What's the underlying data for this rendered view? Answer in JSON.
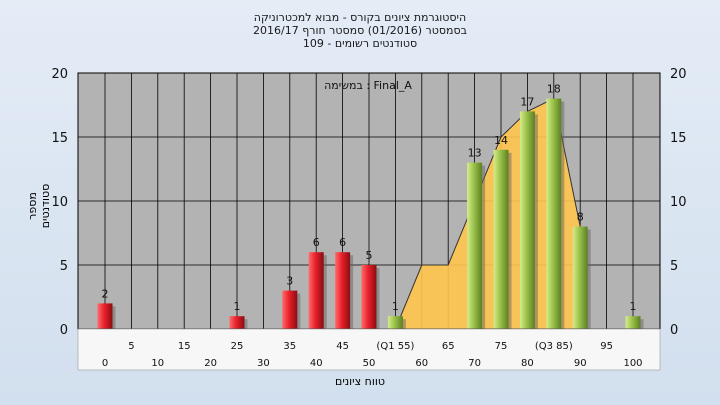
{
  "header": {
    "line1": "היסטוגרמת ציונים בקורס - מבוא למכטרוניקה",
    "line2": "בסמסטר  (01/2016)  סמסטר חורף  2016/17",
    "line3": "סטודנטים רשומים - 109"
  },
  "chart_data": {
    "type": "bar",
    "annotation": "במשימה : Final_A",
    "xlabel": "טווח ציונים",
    "ylabel": "מספר סטודנטים",
    "ylim": [
      0,
      20
    ],
    "y_ticks": [
      0,
      5,
      10,
      15,
      20
    ],
    "grid": true,
    "x_tick_labels": [
      {
        "pos": 0,
        "label": "0"
      },
      {
        "pos": 5,
        "label": "5"
      },
      {
        "pos": 10,
        "label": "10"
      },
      {
        "pos": 15,
        "label": "15"
      },
      {
        "pos": 20,
        "label": "20"
      },
      {
        "pos": 25,
        "label": "25"
      },
      {
        "pos": 30,
        "label": "30"
      },
      {
        "pos": 35,
        "label": "35"
      },
      {
        "pos": 40,
        "label": "40"
      },
      {
        "pos": 45,
        "label": "45"
      },
      {
        "pos": 50,
        "label": "50"
      },
      {
        "pos": 55,
        "label": "(Q1 55)"
      },
      {
        "pos": 60,
        "label": "60"
      },
      {
        "pos": 65,
        "label": "65"
      },
      {
        "pos": 70,
        "label": "70"
      },
      {
        "pos": 75,
        "label": "75"
      },
      {
        "pos": 80,
        "label": "80"
      },
      {
        "pos": 85,
        "label": "(Q3 85)"
      },
      {
        "pos": 90,
        "label": "90"
      },
      {
        "pos": 95,
        "label": "95"
      },
      {
        "pos": 100,
        "label": "100"
      }
    ],
    "bars": [
      {
        "x": 0,
        "value": 2,
        "color": "red"
      },
      {
        "x": 25,
        "value": 1,
        "color": "red"
      },
      {
        "x": 35,
        "value": 3,
        "color": "red"
      },
      {
        "x": 40,
        "value": 6,
        "color": "red"
      },
      {
        "x": 45,
        "value": 6,
        "color": "red"
      },
      {
        "x": 50,
        "value": 5,
        "color": "red"
      },
      {
        "x": 55,
        "value": 1,
        "color": "green"
      },
      {
        "x": 70,
        "value": 13,
        "color": "green"
      },
      {
        "x": 75,
        "value": 14,
        "color": "green"
      },
      {
        "x": 80,
        "value": 17,
        "color": "green"
      },
      {
        "x": 85,
        "value": 18,
        "color": "green"
      },
      {
        "x": 90,
        "value": 8,
        "color": "green"
      },
      {
        "x": 100,
        "value": 1,
        "color": "green"
      }
    ],
    "area": {
      "color": "#ffc44d",
      "points": [
        [
          55,
          0
        ],
        [
          60,
          5
        ],
        [
          65,
          5
        ],
        [
          75,
          15
        ],
        [
          80,
          17
        ],
        [
          85,
          18
        ],
        [
          90,
          8
        ]
      ]
    },
    "colors": {
      "red_bar": "#e8202a",
      "green_bar": "#9ac24a",
      "plot_bg": "#b3b3b3"
    }
  }
}
